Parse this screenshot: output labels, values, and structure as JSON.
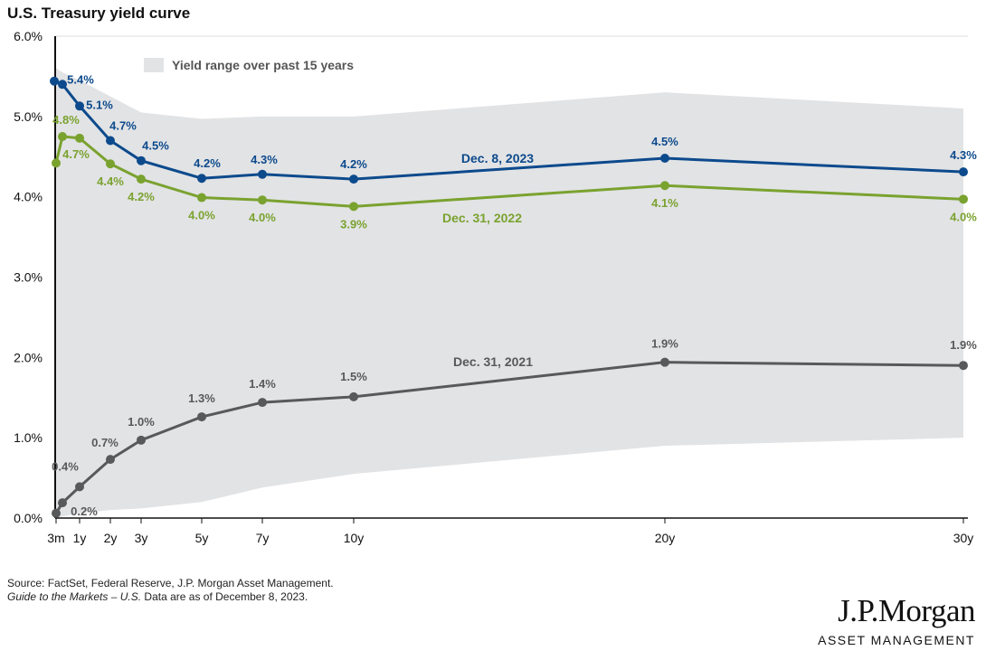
{
  "chart_data": {
    "type": "line",
    "title": "U.S. Treasury yield curve",
    "xlabel": "",
    "ylabel": "",
    "ylim": [
      0,
      6
    ],
    "yticks": [
      "0.0%",
      "1.0%",
      "2.0%",
      "3.0%",
      "4.0%",
      "5.0%",
      "6.0%"
    ],
    "xtick_labels": [
      "3m",
      "1y",
      "2y",
      "3y",
      "5y",
      "7y",
      "10y",
      "20y",
      "30y"
    ],
    "xtick_values": [
      0.25,
      1,
      2,
      3,
      5,
      7,
      10,
      20,
      30
    ],
    "x": [
      0.25,
      0.5,
      1,
      2,
      3,
      5,
      7,
      10,
      20,
      30
    ],
    "range_band": {
      "name": "Yield range over past 15 years",
      "color": "#e2e3e5",
      "upper": [
        5.6,
        5.55,
        5.45,
        5.25,
        5.05,
        4.97,
        5.0,
        5.0,
        5.3,
        5.1
      ],
      "lower": [
        0.0,
        0.02,
        0.06,
        0.1,
        0.12,
        0.2,
        0.38,
        0.55,
        0.9,
        1.0
      ]
    },
    "series": [
      {
        "name": "Dec. 8, 2023",
        "color": "#0c4a8c",
        "values": [
          5.44,
          5.4,
          5.13,
          4.7,
          4.45,
          4.23,
          4.28,
          4.22,
          4.48,
          4.31
        ],
        "labels": [
          "",
          "5.4%",
          "5.1%",
          "4.7%",
          "4.5%",
          "4.2%",
          "4.3%",
          "4.2%",
          "4.5%",
          "4.3%"
        ]
      },
      {
        "name": "Dec. 31, 2022",
        "color": "#7aa22f",
        "values": [
          4.42,
          4.75,
          4.73,
          4.41,
          4.22,
          3.99,
          3.96,
          3.88,
          4.14,
          3.97
        ],
        "labels": [
          "",
          "4.8%",
          "4.7%",
          "4.4%",
          "4.2%",
          "4.0%",
          "4.0%",
          "3.9%",
          "4.1%",
          "4.0%"
        ]
      },
      {
        "name": "Dec. 31, 2021",
        "color": "#58595b",
        "values": [
          0.06,
          0.19,
          0.39,
          0.73,
          0.97,
          1.26,
          1.44,
          1.51,
          1.94,
          1.9
        ],
        "labels": [
          "",
          "0.2%",
          "0.4%",
          "0.7%",
          "1.0%",
          "1.3%",
          "1.4%",
          "1.5%",
          "1.9%",
          "1.9%"
        ]
      }
    ]
  },
  "footer": {
    "source": "Source: FactSet, Federal Reserve, J.P. Morgan Asset Management.",
    "guide_italic": "Guide to the Markets – U.S.",
    "guide_rest": " Data are as of December 8, 2023."
  },
  "logo": {
    "name": "J.P.Morgan",
    "sub": "ASSET MANAGEMENT"
  }
}
